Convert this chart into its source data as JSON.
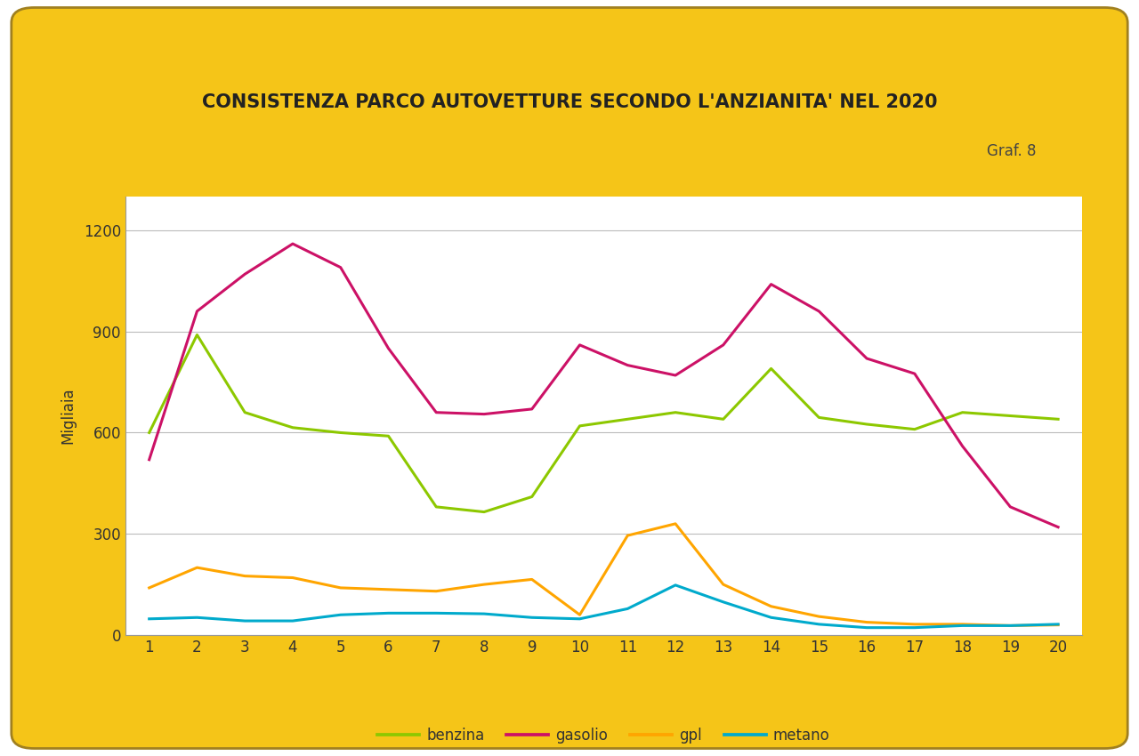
{
  "title": "CONSISTENZA PARCO AUTOVETTURE SECONDO L'ANZIANITA' NEL 2020",
  "graf_label": "Graf. 8",
  "ylabel": "Migliaia",
  "background_page": "#FFFFFF",
  "background_card": "#F5C518",
  "background_inner": "#FFFFFF",
  "xlim": [
    0.5,
    20.5
  ],
  "ylim": [
    0,
    1300
  ],
  "yticks": [
    0,
    300,
    600,
    900,
    1200
  ],
  "ytick_labels": [
    "0",
    "300",
    "600",
    "900",
    "1200"
  ],
  "xticks": [
    1,
    2,
    3,
    4,
    5,
    6,
    7,
    8,
    9,
    10,
    11,
    12,
    13,
    14,
    15,
    16,
    17,
    18,
    19,
    20
  ],
  "series": {
    "benzina": {
      "color": "#8DC800",
      "values": [
        600,
        890,
        660,
        615,
        600,
        590,
        380,
        365,
        410,
        620,
        640,
        660,
        640,
        790,
        645,
        625,
        610,
        660,
        650,
        640
      ]
    },
    "gasolio": {
      "color": "#CC1166",
      "values": [
        520,
        960,
        1070,
        1160,
        1090,
        850,
        660,
        655,
        670,
        860,
        800,
        770,
        860,
        1040,
        960,
        820,
        775,
        560,
        380,
        320
      ]
    },
    "gpl": {
      "color": "#FFA500",
      "values": [
        140,
        200,
        175,
        170,
        140,
        135,
        130,
        150,
        165,
        60,
        295,
        330,
        150,
        85,
        55,
        38,
        32,
        32,
        28,
        30
      ]
    },
    "metano": {
      "color": "#00AACC",
      "values": [
        48,
        52,
        42,
        42,
        60,
        65,
        65,
        63,
        52,
        48,
        78,
        148,
        98,
        52,
        32,
        22,
        22,
        28,
        28,
        32
      ]
    }
  },
  "legend_order": [
    "benzina",
    "gasolio",
    "gpl",
    "metano"
  ],
  "title_fontsize": 15,
  "axis_fontsize": 12,
  "legend_fontsize": 12,
  "graf_fontsize": 12,
  "line_width": 2.2
}
